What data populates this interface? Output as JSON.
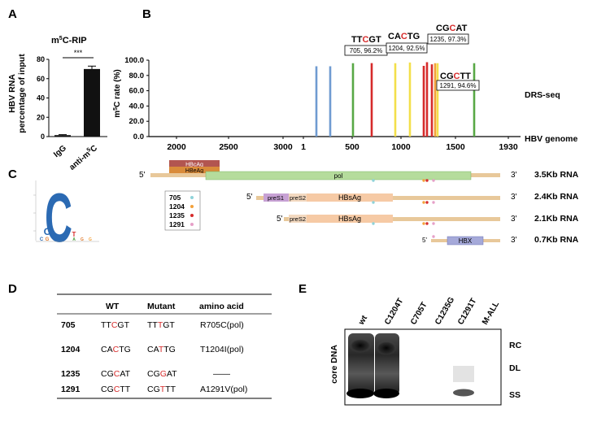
{
  "panels": {
    "a": {
      "letter": "A",
      "chart_title_prefix": "m",
      "chart_title_sup": "5",
      "chart_title_suffix": "C-RIP",
      "ylabel_line1": "HBV RNA",
      "ylabel_line2": "percentage of input",
      "significance": "***",
      "chart_data": {
        "type": "bar",
        "categories": [
          "IgG",
          "anti-m5C"
        ],
        "values": [
          1.5,
          70
        ],
        "errors": [
          0.5,
          3
        ],
        "yticks": [
          0,
          20,
          40,
          60,
          80
        ],
        "ylim": [
          0,
          80
        ],
        "colors": [
          "#111111",
          "#111111"
        ]
      }
    },
    "b": {
      "letter": "B",
      "ylabel": "m5C rate (%)",
      "track_label": "DRS-seq",
      "genome_label": "HBV genome",
      "chart_data": {
        "type": "bar",
        "yticks": [
          "0.0",
          "20.0",
          "40.0",
          "60.0",
          "80.0",
          "100.0"
        ],
        "ylim": [
          0,
          100
        ],
        "genome_ticks": [
          "2000",
          "2500",
          "3000",
          "1",
          "500",
          "1000",
          "1500",
          "1930"
        ],
        "sites": [
          {
            "value": 92,
            "color": "#6f9bd1"
          },
          {
            "value": 92,
            "color": "#6f9bd1"
          },
          {
            "value": 96,
            "color": "#58a845"
          },
          {
            "value": 96.2,
            "color": "#d62b2b"
          },
          {
            "value": 96,
            "color": "#f3df4a"
          },
          {
            "value": 97,
            "color": "#f3df4a"
          },
          {
            "value": 92.5,
            "color": "#d62b2b"
          },
          {
            "value": 97.3,
            "color": "#d62b2b"
          },
          {
            "value": 94.6,
            "color": "#d62b2b"
          },
          {
            "value": 96,
            "color": "#f3a13a"
          },
          {
            "value": 96,
            "color": "#f3df4a"
          },
          {
            "value": 96,
            "color": "#58a845"
          }
        ],
        "annotations": [
          {
            "motif_pre": "TT",
            "motif_c": "C",
            "motif_post": "GT",
            "box": "705, 96.2%"
          },
          {
            "motif_pre": "CA",
            "motif_c": "C",
            "motif_post": "TG",
            "box": "1204, 92.5%"
          },
          {
            "motif_pre": "CG",
            "motif_c": "C",
            "motif_post": "AT",
            "box": "1235, 97.3%"
          },
          {
            "motif_pre": "CG",
            "motif_c": "C",
            "motif_post": "TT",
            "box": "1291, 94.6%"
          }
        ]
      },
      "genes": {
        "hbcag": "HBcAg",
        "hbeag": "HBeAg",
        "pol": "pol",
        "pres1": "preS1",
        "pres2": "preS2",
        "hbsag": "HBsAg",
        "hbx": "HBX",
        "five_prime": "5'",
        "three_prime": "3'"
      },
      "rnas": [
        "3.5Kb RNA",
        "2.4Kb RNA",
        "2.1Kb RNA",
        "0.7Kb RNA"
      ],
      "legend": [
        {
          "label": "705",
          "color": "#8fd3d9"
        },
        {
          "label": "1204",
          "color": "#f3a13a"
        },
        {
          "label": "1235",
          "color": "#d62b2b"
        },
        {
          "label": "1291",
          "color": "#e6a0c8"
        }
      ]
    },
    "c": {
      "letter": "C"
    },
    "d": {
      "letter": "D",
      "headers": [
        "WT",
        "Mutant",
        "amino acid"
      ],
      "rows": [
        {
          "pos": "705",
          "wt_pre": "TT",
          "wt_c": "C",
          "wt_post": "GT",
          "mut_pre": "TT",
          "mut_c": "T",
          "mut_post": "GT",
          "aa": "R705C(pol)"
        },
        {
          "pos": "1204",
          "wt_pre": "CA",
          "wt_c": "C",
          "wt_post": "TG",
          "mut_pre": "CA",
          "mut_c": "T",
          "mut_post": "TG",
          "aa": "T1204I(pol)"
        },
        {
          "pos": "1235",
          "wt_pre": "CG",
          "wt_c": "C",
          "wt_post": "AT",
          "mut_pre": "CG",
          "mut_c": "G",
          "mut_post": "AT",
          "aa": "——"
        },
        {
          "pos": "1291",
          "wt_pre": "CG",
          "wt_c": "C",
          "wt_post": "TT",
          "mut_pre": "CG",
          "mut_c": "T",
          "mut_post": "TT",
          "aa": "A1291V(pol)"
        }
      ]
    },
    "e": {
      "letter": "E",
      "ylabel": "core DNA",
      "lanes": [
        "wt",
        "C1204T",
        "C705T",
        "C1235G",
        "C1291T",
        "M-ALL"
      ],
      "bands": [
        "RC",
        "DL",
        "SS"
      ]
    }
  }
}
